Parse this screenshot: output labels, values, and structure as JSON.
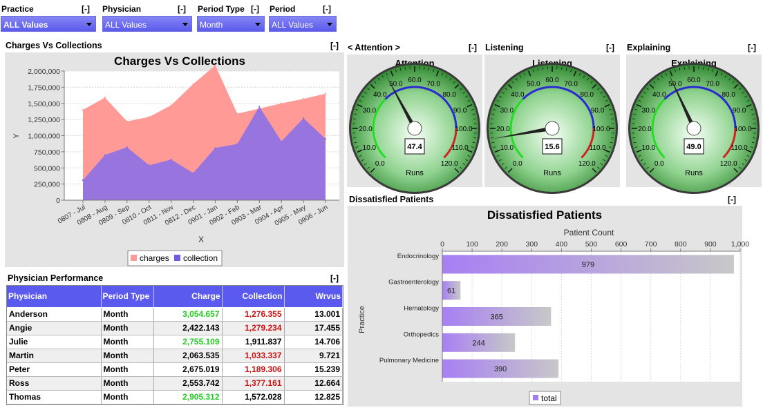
{
  "filters": [
    {
      "label": "Practice",
      "value": "ALL Values",
      "collapse": "[-]"
    },
    {
      "label": "Physician",
      "value": "ALL Values",
      "collapse": "[-]"
    },
    {
      "label": "Period Type",
      "value": "Month",
      "collapse": "[-]"
    },
    {
      "label": "Period",
      "value": "ALL Values",
      "collapse": "[-]"
    }
  ],
  "charges_panel": {
    "header": "Charges Vs Collections",
    "collapse": "[-]",
    "chart_data": {
      "type": "area",
      "title": "Charges Vs Collections",
      "xlabel": "X",
      "ylabel": "Y",
      "ylim": [
        0,
        2000000
      ],
      "yticks": [
        "0",
        "250,000",
        "500,000",
        "750,000",
        "1,000,000",
        "1,250,000",
        "1,500,000",
        "1,750,000",
        "2,000,000"
      ],
      "categories": [
        "0807 - Jul",
        "0808 - Aug",
        "0809 - Sep",
        "0810 - Oct",
        "0811 - Nov",
        "0812 - Dec",
        "0901 - Jan",
        "0902 - Feb",
        "0903 - Mar",
        "0904 - Apr",
        "0905 - May",
        "0906 - Jun"
      ],
      "series": [
        {
          "name": "charges",
          "color": "#ff9a96",
          "values": [
            1400000,
            1590000,
            1220000,
            1290000,
            1470000,
            1800000,
            2090000,
            1340000,
            1420000,
            1500000,
            1570000,
            1650000
          ]
        },
        {
          "name": "collection",
          "color": "#8c70e6",
          "values": [
            310000,
            700000,
            820000,
            540000,
            630000,
            420000,
            810000,
            870000,
            1450000,
            910000,
            1270000,
            950000
          ]
        }
      ],
      "legend": "bottom"
    }
  },
  "gauges": [
    {
      "header": "< Attention >",
      "collapse": "[-]",
      "title": "Attention",
      "value": "47.4",
      "unit": "Runs",
      "ticks": [
        "0.0",
        "10.0",
        "20.0",
        "30.0",
        "40.0",
        "50.0",
        "60.0",
        "70.0",
        "80.0",
        "90.0",
        "100.0",
        "110.0",
        "120.0"
      ],
      "needle": 47.4
    },
    {
      "header": "Listening",
      "collapse": "[-]",
      "title": "Listening",
      "value": "15.6",
      "unit": "Runs",
      "ticks": [
        "0.0",
        "10.0",
        "20.0",
        "30.0",
        "40.0",
        "50.0",
        "60.0",
        "70.0",
        "80.0",
        "90.0",
        "100.0",
        "110.0",
        "120.0"
      ],
      "needle": 15.6
    },
    {
      "header": "Explaining",
      "collapse": "[-]",
      "title": "Explaining",
      "value": "49.0",
      "unit": "Runs",
      "ticks": [
        "0.0",
        "10.0",
        "20.0",
        "30.0",
        "40.0",
        "50.0",
        "60.0",
        "70.0",
        "80.0",
        "90.0",
        "100.0",
        "110.0",
        "120.0"
      ],
      "needle": 49.0
    }
  ],
  "dissatisfied_panel": {
    "header": "Dissatisfied Patients",
    "collapse": "[-]",
    "chart_data": {
      "type": "bar",
      "orientation": "horizontal",
      "title": "Dissatisfied Patients",
      "xlabel": "Patient Count",
      "ylabel": "Practice",
      "xlim": [
        0,
        1000
      ],
      "xticks": [
        "0",
        "100",
        "200",
        "300",
        "400",
        "500",
        "600",
        "700",
        "800",
        "900",
        "1,000"
      ],
      "categories": [
        "Endocrinology",
        "Gastroenterology",
        "Hematology",
        "Orthopedics",
        "Pulmonary Medicine"
      ],
      "values": [
        979,
        61,
        365,
        244,
        390
      ],
      "labels": [
        "979",
        "61",
        "365",
        "244",
        "390"
      ],
      "legend": [
        "total"
      ]
    }
  },
  "physician_panel": {
    "header": "Physician Performance",
    "collapse": "[-]",
    "columns": [
      "Physician",
      "Period Type",
      "Charge",
      "Collection",
      "Wrvus"
    ],
    "rows": [
      {
        "physician": "Anderson",
        "period": "Month",
        "charge": "3,054.657",
        "charge_color": "green",
        "collection": "1,276.355",
        "collection_color": "red",
        "wrvus": "13.001"
      },
      {
        "physician": "Angie",
        "period": "Month",
        "charge": "2,422.143",
        "charge_color": "black",
        "collection": "1,279.234",
        "collection_color": "red",
        "wrvus": "17.455"
      },
      {
        "physician": "Julie",
        "period": "Month",
        "charge": "2,755.109",
        "charge_color": "green",
        "collection": "1,911.837",
        "collection_color": "black",
        "wrvus": "14.706"
      },
      {
        "physician": "Martin",
        "period": "Month",
        "charge": "2,063.535",
        "charge_color": "black",
        "collection": "1,033.337",
        "collection_color": "red",
        "wrvus": "9.721"
      },
      {
        "physician": "Peter",
        "period": "Month",
        "charge": "2,675.019",
        "charge_color": "black",
        "collection": "1,189.306",
        "collection_color": "red",
        "wrvus": "15.239"
      },
      {
        "physician": "Ross",
        "period": "Month",
        "charge": "2,553.742",
        "charge_color": "black",
        "collection": "1,377.161",
        "collection_color": "red",
        "wrvus": "12.664"
      },
      {
        "physician": "Thomas",
        "period": "Month",
        "charge": "2,905.312",
        "charge_color": "green",
        "collection": "1,572.028",
        "collection_color": "black",
        "wrvus": "12.825"
      }
    ]
  }
}
